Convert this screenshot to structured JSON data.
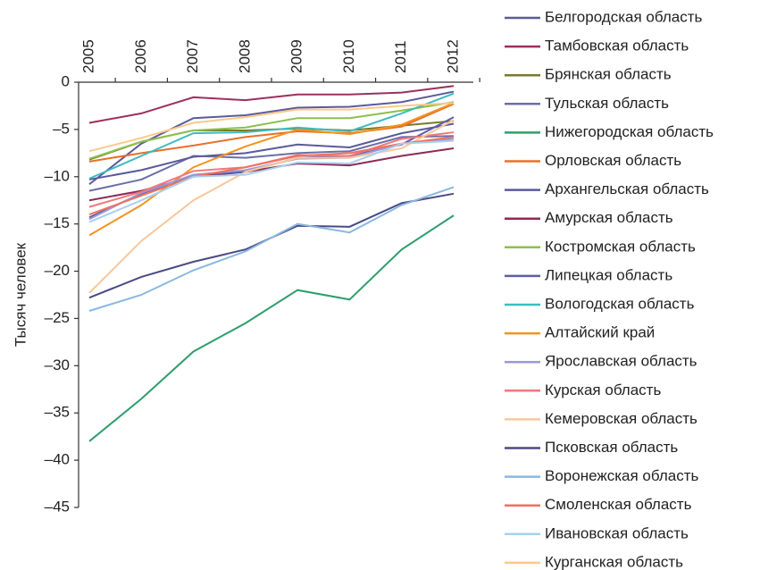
{
  "chart_data": {
    "type": "line",
    "y_label": "Тысяч человек",
    "categories": [
      "2005",
      "2006",
      "2007",
      "2008",
      "2009",
      "2010",
      "2011",
      "2012"
    ],
    "ylim": [
      -45,
      0
    ],
    "yticks": [
      0,
      {
        "value": -5,
        "label": "–5"
      },
      {
        "value": -10,
        "label": "–10"
      },
      {
        "value": -15,
        "label": "–15"
      },
      {
        "value": -20,
        "label": "–20"
      },
      {
        "value": -25,
        "label": "–25"
      },
      {
        "value": -30,
        "label": "–30"
      },
      {
        "value": -35,
        "label": "–35"
      },
      {
        "value": -40,
        "label": "–40"
      },
      {
        "value": -45,
        "label": "–45"
      }
    ],
    "series": [
      {
        "name": "Белгородская область",
        "color": "#5b5b9a",
        "values": [
          -10.8,
          -6.5,
          -3.8,
          -3.5,
          -2.7,
          -2.6,
          -2.1,
          -1.0
        ]
      },
      {
        "name": "Тамбовская область",
        "color": "#9c2f5e",
        "values": [
          -4.3,
          -3.3,
          -1.6,
          -1.9,
          -1.3,
          -1.3,
          -1.1,
          -0.4
        ]
      },
      {
        "name": "Брянская область",
        "color": "#7a7a2a",
        "values": [
          -8.2,
          -6.3,
          -5.1,
          -5.1,
          -4.9,
          -5.1,
          -4.6,
          -4.1
        ]
      },
      {
        "name": "Тульская область",
        "color": "#6b6fa8",
        "values": [
          -11.5,
          -10.3,
          -7.8,
          -8.0,
          -7.5,
          -7.3,
          -5.8,
          -5.7
        ]
      },
      {
        "name": "Нижегородская область",
        "color": "#2e9e6b",
        "values": [
          -38.0,
          -33.5,
          -28.5,
          -25.5,
          -22.0,
          -23.0,
          -17.7,
          -14.1
        ]
      },
      {
        "name": "Орловская область",
        "color": "#e8702a",
        "values": [
          -8.4,
          -7.5,
          -6.7,
          -5.8,
          -5.2,
          -5.4,
          -4.7,
          -2.3
        ]
      },
      {
        "name": "Архангельская область",
        "color": "#5a5a9a",
        "values": [
          -10.3,
          -9.3,
          -7.9,
          -7.5,
          -6.6,
          -6.9,
          -5.4,
          -4.4
        ]
      },
      {
        "name": "Амурская область",
        "color": "#8e2a55",
        "values": [
          -12.5,
          -11.5,
          -10.0,
          -9.5,
          -8.6,
          -8.8,
          -7.8,
          -7.0
        ]
      },
      {
        "name": "Костромская область",
        "color": "#8cc04a",
        "values": [
          -8.1,
          -6.3,
          -5.1,
          -4.8,
          -3.8,
          -3.8,
          -3.0,
          -2.1
        ]
      },
      {
        "name": "Липецкая область",
        "color": "#5c5ea8",
        "values": [
          -14.3,
          -11.8,
          -9.8,
          -9.5,
          -8.0,
          -7.8,
          -6.6,
          -3.7
        ]
      },
      {
        "name": "Вологодская область",
        "color": "#3dbcc0",
        "values": [
          -10.2,
          -7.8,
          -5.4,
          -5.3,
          -4.8,
          -5.2,
          -3.3,
          -1.2
        ]
      },
      {
        "name": "Алтайский край",
        "color": "#f29420",
        "values": [
          -16.2,
          -13.0,
          -9.0,
          -6.8,
          -5.0,
          -5.5,
          -4.5,
          -2.2
        ]
      },
      {
        "name": "Ярославская область",
        "color": "#9a9ad4",
        "values": [
          -14.5,
          -11.7,
          -9.8,
          -9.3,
          -8.1,
          -8.0,
          -6.5,
          -6.0
        ]
      },
      {
        "name": "Курская область",
        "color": "#f07878",
        "values": [
          -13.2,
          -11.6,
          -9.4,
          -9.0,
          -7.7,
          -7.8,
          -6.0,
          -5.3
        ]
      },
      {
        "name": "Кемеровская область",
        "color": "#f9c79c",
        "values": [
          -22.3,
          -16.8,
          -12.5,
          -9.5,
          -8.0,
          -8.0,
          -7.0,
          -4.0
        ]
      },
      {
        "name": "Псковская область",
        "color": "#4a4a85",
        "values": [
          -22.8,
          -20.6,
          -19.0,
          -17.7,
          -15.2,
          -15.3,
          -12.8,
          -11.8
        ]
      },
      {
        "name": "Воронежская область",
        "color": "#8ab8e0",
        "values": [
          -24.2,
          -22.5,
          -19.9,
          -17.9,
          -15.0,
          -15.9,
          -13.0,
          -11.1
        ]
      },
      {
        "name": "Смоленская область",
        "color": "#f07060",
        "values": [
          -14.0,
          -12.0,
          -10.0,
          -9.0,
          -7.8,
          -7.5,
          -6.5,
          -5.8
        ]
      },
      {
        "name": "Ивановская область",
        "color": "#a8d0ee",
        "values": [
          -14.8,
          -12.5,
          -10.0,
          -9.8,
          -8.5,
          -8.6,
          -6.5,
          -6.2
        ]
      },
      {
        "name": "Курганская область",
        "color": "#fbc98a",
        "values": [
          -7.3,
          -5.9,
          -4.3,
          -3.7,
          -2.9,
          -2.9,
          -2.5,
          -2.2
        ]
      }
    ]
  }
}
